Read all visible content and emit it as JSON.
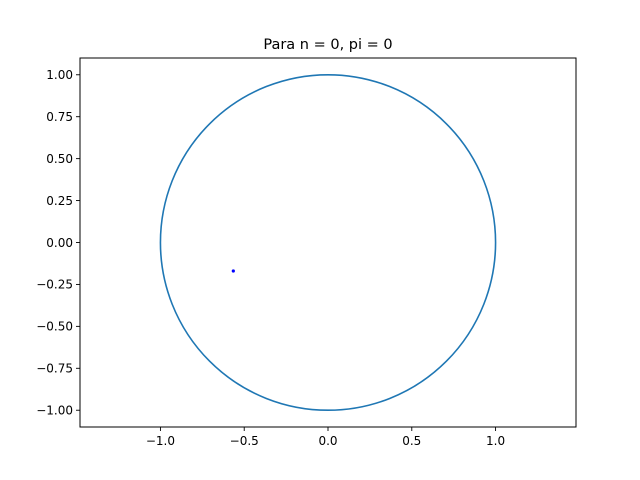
{
  "chart_data": {
    "type": "scatter",
    "title": "Para n = 0, pi = 0",
    "xlabel": "",
    "ylabel": "",
    "xlim": [
      -1.48,
      1.48
    ],
    "ylim": [
      -1.1,
      1.1
    ],
    "xticks": [
      -1.0,
      -0.5,
      0.0,
      0.5,
      1.0
    ],
    "xtick_labels": [
      "−1.0",
      "−0.5",
      "0.0",
      "0.5",
      "1.0"
    ],
    "yticks": [
      1.0,
      0.75,
      0.5,
      0.25,
      0.0,
      -0.25,
      -0.5,
      -0.75,
      -1.0
    ],
    "ytick_labels": [
      "1.00",
      "0.75",
      "0.50",
      "0.25",
      "0.00",
      "−0.25",
      "−0.50",
      "−0.75",
      "−1.00"
    ],
    "grid": false,
    "series": [
      {
        "kind": "circle",
        "center": [
          0,
          0
        ],
        "radius": 1,
        "color": "#1f77b4"
      },
      {
        "kind": "points",
        "points": [
          [
            -0.565,
            -0.17
          ]
        ],
        "color": "#0000ff"
      }
    ]
  }
}
